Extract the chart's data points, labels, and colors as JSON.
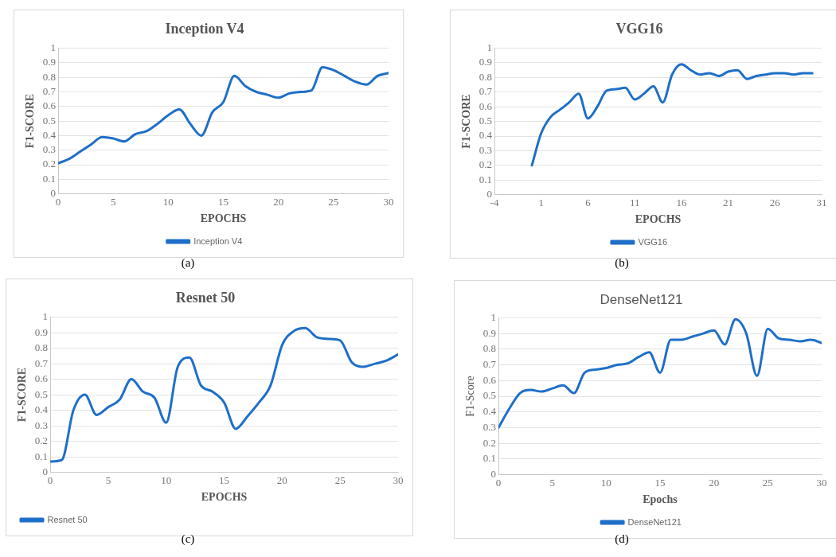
{
  "chart_data": [
    {
      "type": "line",
      "title": "Inception V4",
      "xlabel": "EPOCHS",
      "ylabel": "F1-SCORE",
      "annotations": [
        "(a)"
      ],
      "x": [
        0,
        1,
        2,
        3,
        4,
        5,
        6,
        7,
        8,
        9,
        10,
        11,
        12,
        13,
        14,
        15,
        16,
        17,
        18,
        19,
        20,
        21,
        22,
        23,
        24,
        25,
        26,
        27,
        28,
        29,
        30
      ],
      "xlim": [
        0,
        30
      ],
      "xticks": [
        0,
        5,
        10,
        15,
        20,
        25,
        30
      ],
      "ylim": [
        0,
        1
      ],
      "yticks": [
        0,
        0.1,
        0.2,
        0.3,
        0.4,
        0.5,
        0.6,
        0.7,
        0.8,
        0.9,
        1
      ],
      "grid": "y",
      "legend": "bottom",
      "marker": "none",
      "line_style": "solid",
      "series": [
        {
          "name": "Inception V4",
          "color": "#1f6fc8",
          "values": [
            0.21,
            0.24,
            0.29,
            0.34,
            0.39,
            0.38,
            0.36,
            0.41,
            0.43,
            0.48,
            0.54,
            0.58,
            0.48,
            0.4,
            0.56,
            0.63,
            0.81,
            0.74,
            0.7,
            0.68,
            0.66,
            0.69,
            0.7,
            0.71,
            0.87,
            0.85,
            0.81,
            0.77,
            0.75,
            0.81,
            0.83
          ]
        }
      ]
    },
    {
      "type": "line",
      "title": "VGG16",
      "xlabel": "EPOCHS",
      "ylabel": "F1-SCORE",
      "annotations": [
        "(b)"
      ],
      "x": [
        0,
        1,
        2,
        3,
        4,
        5,
        6,
        7,
        8,
        9,
        10,
        11,
        12,
        13,
        14,
        15,
        16,
        17,
        18,
        19,
        20,
        21,
        22,
        23,
        24,
        25,
        26,
        27,
        28,
        29,
        30
      ],
      "xlim": [
        -4,
        31
      ],
      "xticks": [
        -4,
        1,
        6,
        11,
        16,
        21,
        26,
        31
      ],
      "ylim": [
        0,
        1
      ],
      "yticks": [
        0,
        0.1,
        0.2,
        0.3,
        0.4,
        0.5,
        0.6,
        0.7,
        0.8,
        0.9,
        1
      ],
      "grid": "y",
      "legend": "bottom",
      "marker": "none",
      "line_style": "solid",
      "series": [
        {
          "name": "VGG16",
          "color": "#1f6fc8",
          "values": [
            0.2,
            0.42,
            0.53,
            0.58,
            0.63,
            0.69,
            0.52,
            0.6,
            0.71,
            0.72,
            0.73,
            0.65,
            0.69,
            0.74,
            0.63,
            0.82,
            0.89,
            0.85,
            0.82,
            0.83,
            0.81,
            0.84,
            0.85,
            0.79,
            0.81,
            0.82,
            0.83,
            0.83,
            0.82,
            0.83,
            0.83
          ]
        }
      ]
    },
    {
      "type": "line",
      "title": "Resnet 50",
      "xlabel": "EPOCHS",
      "ylabel": "F1-SCORE",
      "annotations": [
        "(c)"
      ],
      "x": [
        0,
        1,
        2,
        3,
        4,
        5,
        6,
        7,
        8,
        9,
        10,
        11,
        12,
        13,
        14,
        15,
        16,
        17,
        18,
        19,
        20,
        21,
        22,
        23,
        24,
        25,
        26,
        27,
        28,
        29,
        30
      ],
      "xlim": [
        0,
        30
      ],
      "xticks": [
        0,
        5,
        10,
        15,
        20,
        25,
        30
      ],
      "ylim": [
        0,
        1
      ],
      "yticks": [
        0,
        0.1,
        0.2,
        0.3,
        0.4,
        0.5,
        0.6,
        0.7,
        0.8,
        0.9,
        1
      ],
      "grid": "y",
      "legend": "bottom left",
      "marker": "none",
      "line_style": "solid",
      "series": [
        {
          "name": "Resnet 50",
          "color": "#1f6fc8",
          "values": [
            0.07,
            0.08,
            0.4,
            0.5,
            0.37,
            0.42,
            0.47,
            0.6,
            0.52,
            0.48,
            0.32,
            0.68,
            0.74,
            0.56,
            0.52,
            0.45,
            0.28,
            0.36,
            0.45,
            0.56,
            0.82,
            0.91,
            0.93,
            0.87,
            0.86,
            0.85,
            0.71,
            0.68,
            0.7,
            0.72,
            0.76
          ]
        }
      ]
    },
    {
      "type": "line",
      "title": "DenseNet121",
      "xlabel": "Epochs",
      "ylabel": "F1-Score",
      "annotations": [
        "(d)"
      ],
      "x": [
        0,
        1,
        2,
        3,
        4,
        5,
        6,
        7,
        8,
        9,
        10,
        11,
        12,
        13,
        14,
        15,
        16,
        17,
        18,
        19,
        20,
        21,
        22,
        23,
        24,
        25,
        26,
        27,
        28,
        29,
        30
      ],
      "xlim": [
        0,
        30
      ],
      "xticks": [
        0,
        5,
        10,
        15,
        20,
        25,
        30
      ],
      "ylim": [
        0,
        1
      ],
      "yticks": [
        0,
        0.1,
        0.2,
        0.3,
        0.4,
        0.5,
        0.6,
        0.7,
        0.8,
        0.9,
        1
      ],
      "grid": "y",
      "legend": "bottom",
      "marker": "none",
      "line_style": "solid",
      "series": [
        {
          "name": "DenseNet121",
          "color": "#1f6fc8",
          "values": [
            0.3,
            0.42,
            0.52,
            0.54,
            0.53,
            0.55,
            0.57,
            0.52,
            0.65,
            0.67,
            0.68,
            0.7,
            0.71,
            0.75,
            0.78,
            0.65,
            0.86,
            0.86,
            0.88,
            0.9,
            0.92,
            0.83,
            0.99,
            0.9,
            0.63,
            0.93,
            0.87,
            0.86,
            0.85,
            0.86,
            0.84
          ]
        }
      ]
    }
  ]
}
